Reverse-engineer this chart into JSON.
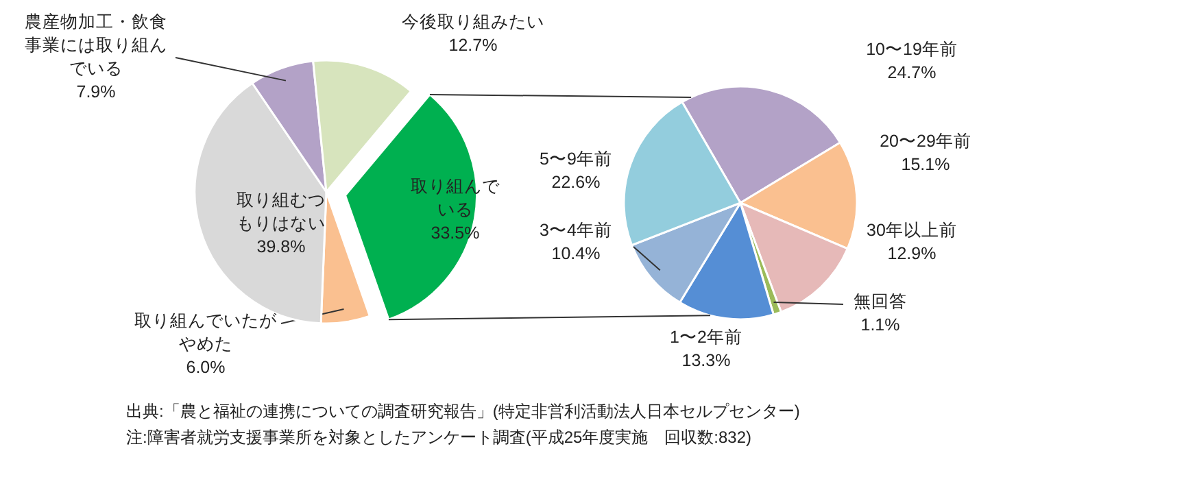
{
  "chart_data": [
    {
      "type": "pie",
      "categories": [
        "取り組んでいる",
        "取り組んでいたがやめた",
        "取り組むつもりはない",
        "農産物加工・飲食事業には取り組んでいる",
        "今後取り組みたい"
      ],
      "values": [
        33.5,
        6.0,
        39.8,
        7.9,
        12.7
      ],
      "value_labels": [
        "33.5%",
        "6.0%",
        "39.8%",
        "7.9%",
        "12.7%"
      ],
      "colors": [
        "#00b050",
        "#fac090",
        "#d9d9d9",
        "#b3a2c7",
        "#d7e4bd"
      ],
      "annotations": [
        "出典:「農と福祉の連携についての調査研究報告」(特定非営利活動法人日本セルプセンター)",
        "注:障害者就労支援事業所を対象としたアンケート調査(平成25年度実施　回収数:832)"
      ]
    },
    {
      "type": "pie",
      "categories": [
        "10〜19年前",
        "20〜29年前",
        "30年以上前",
        "無回答",
        "1〜2年前",
        "3〜4年前",
        "5〜9年前"
      ],
      "values": [
        24.7,
        15.1,
        12.9,
        1.1,
        13.3,
        10.4,
        22.6
      ],
      "value_labels": [
        "24.7%",
        "15.1%",
        "12.9%",
        "1.1%",
        "13.3%",
        "10.4%",
        "22.6%"
      ],
      "colors": [
        "#b3a2c7",
        "#fac090",
        "#e6b9b8",
        "#9bbb59",
        "#558ed5",
        "#95b3d7",
        "#93cddd"
      ]
    }
  ]
}
